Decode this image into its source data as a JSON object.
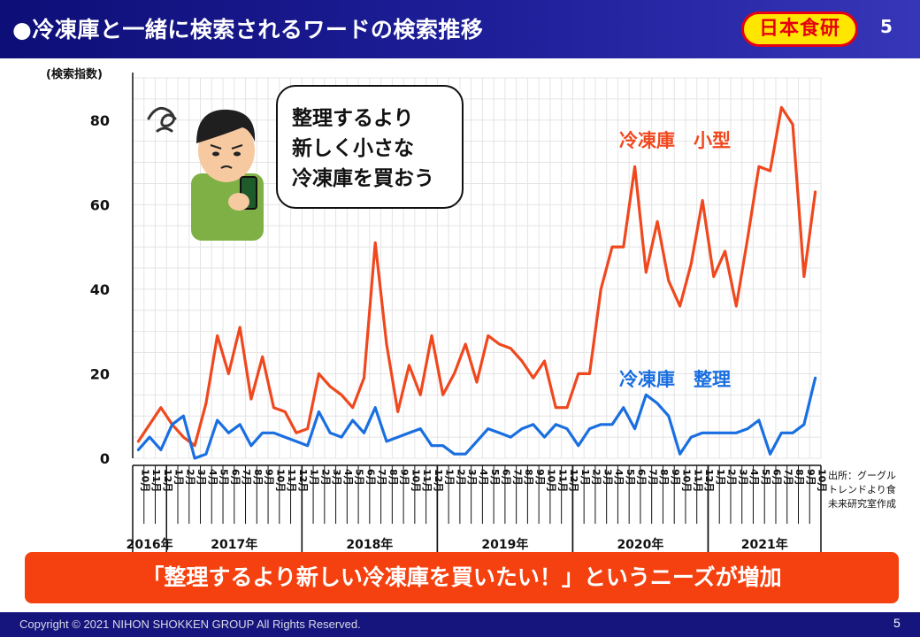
{
  "header": {
    "title": "●冷凍庫と一緒に検索されるワードの検索推移",
    "logo_text": "日本食研",
    "page_number": "5"
  },
  "bubble": {
    "lines": [
      "整理するより",
      "新しく小さな",
      "冷凍庫を買おう"
    ]
  },
  "banner": {
    "text": "「整理するより新しい冷凍庫を買いたい！」というニーズが増加"
  },
  "source": {
    "lines": [
      "出所：グーグル",
      "トレンドより食",
      "未来研究室作成"
    ]
  },
  "footer": {
    "copyright": "Copyright © 2021 NIHON SHOKKEN GROUP All Rights Reserved.",
    "page_number": "5"
  },
  "colors": {
    "series_small": "#f0481e",
    "series_organize": "#1a6fe0",
    "header": "#1a1a8c",
    "banner": "#f5410f"
  },
  "chart_data": {
    "type": "line",
    "ylabel": "(検索指数)",
    "ylim": [
      0,
      90
    ],
    "yticks": [
      0,
      20,
      40,
      60,
      80
    ],
    "grid": true,
    "month_labels": [
      "10月",
      "11月",
      "12月",
      "1月",
      "2月",
      "3月",
      "4月",
      "5月",
      "6月",
      "7月",
      "8月",
      "9月",
      "10月",
      "11月",
      "12月",
      "1月",
      "2月",
      "3月",
      "4月",
      "5月",
      "6月",
      "7月",
      "8月",
      "9月",
      "10月",
      "11月",
      "12月",
      "1月",
      "2月",
      "3月",
      "4月",
      "5月",
      "6月",
      "7月",
      "8月",
      "9月",
      "10月",
      "11月",
      "12月",
      "1月",
      "2月",
      "3月",
      "4月",
      "5月",
      "6月",
      "7月",
      "8月",
      "9月",
      "10月",
      "11月",
      "12月",
      "1月",
      "2月",
      "3月",
      "4月",
      "5月",
      "6月",
      "7月",
      "8月",
      "9月",
      "10月"
    ],
    "years": [
      {
        "label": "2016年",
        "start": 0,
        "count": 3
      },
      {
        "label": "2017年",
        "start": 3,
        "count": 12
      },
      {
        "label": "2018年",
        "start": 15,
        "count": 12
      },
      {
        "label": "2019年",
        "start": 27,
        "count": 12
      },
      {
        "label": "2020年",
        "start": 39,
        "count": 12
      },
      {
        "label": "2021年",
        "start": 51,
        "count": 10
      }
    ],
    "series": [
      {
        "name": "冷凍庫　小型",
        "values": [
          4,
          8,
          12,
          8,
          5,
          3,
          13,
          29,
          20,
          31,
          14,
          24,
          12,
          11,
          6,
          7,
          20,
          17,
          15,
          12,
          19,
          51,
          27,
          11,
          22,
          15,
          29,
          15,
          20,
          27,
          18,
          29,
          27,
          26,
          23,
          19,
          23,
          12,
          12,
          20,
          20,
          40,
          50,
          50,
          69,
          44,
          56,
          42,
          36,
          46,
          61,
          43,
          49,
          36,
          52,
          69,
          68,
          83,
          79,
          43,
          63
        ]
      },
      {
        "name": "冷凍庫　整理",
        "values": [
          2,
          5,
          2,
          8,
          10,
          0,
          1,
          9,
          6,
          8,
          3,
          6,
          6,
          5,
          4,
          3,
          11,
          6,
          5,
          9,
          6,
          12,
          4,
          5,
          6,
          7,
          3,
          3,
          1,
          1,
          4,
          7,
          6,
          5,
          7,
          8,
          5,
          8,
          7,
          3,
          7,
          8,
          8,
          12,
          7,
          15,
          13,
          10,
          1,
          5,
          6,
          6,
          6,
          6,
          7,
          9,
          1,
          6,
          6,
          8,
          19
        ]
      }
    ]
  }
}
